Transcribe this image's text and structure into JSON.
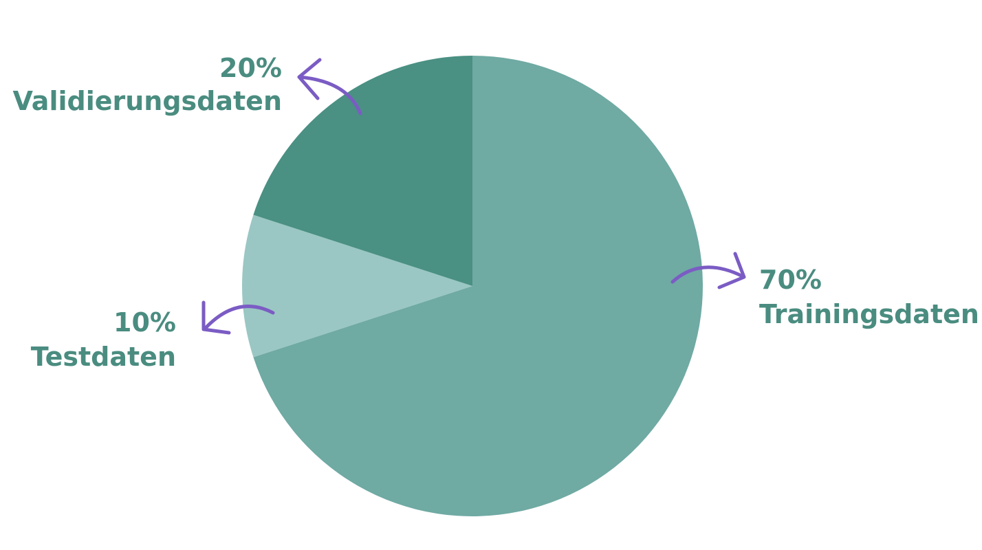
{
  "chart_data": {
    "type": "pie",
    "title": "",
    "start_angle_deg": 0,
    "direction": "clockwise",
    "slices": [
      {
        "percent_label": "70%",
        "name": "Trainingsdaten",
        "value": 70,
        "color": "#6faaa3"
      },
      {
        "percent_label": "10%",
        "name": "Testdaten",
        "value": 10,
        "color": "#9ac7c3"
      },
      {
        "percent_label": "20%",
        "name": "Validierungsdaten",
        "value": 20,
        "color": "#4a9083"
      }
    ],
    "label_color": "#4a8c80",
    "arrow_color": "#7b5cc4"
  }
}
